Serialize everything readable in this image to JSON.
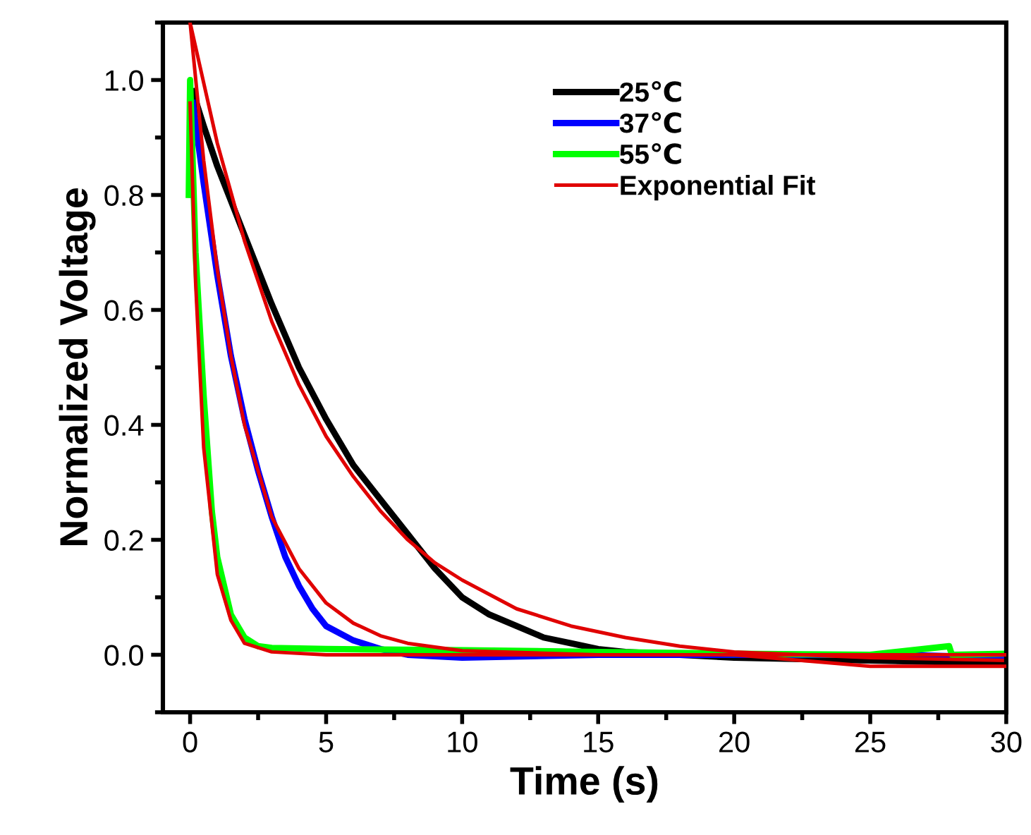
{
  "chart_data": {
    "type": "line",
    "xlabel": "Time (s)",
    "ylabel": "Normalized Voltage",
    "xlim": [
      -1,
      30
    ],
    "ylim": [
      -0.1,
      1.1
    ],
    "xticks": [
      0,
      5,
      10,
      15,
      20,
      25,
      30
    ],
    "yticks": [
      {
        "value": 0,
        "label": "0.0"
      },
      {
        "value": 0.2,
        "label": "0.2"
      },
      {
        "value": 0.4,
        "label": "0.4"
      },
      {
        "value": 0.6,
        "label": "0.6"
      },
      {
        "value": 0.8,
        "label": "0.8"
      },
      {
        "value": 1,
        "label": "1.0"
      }
    ],
    "grid": false,
    "legend": "top",
    "marker": "none",
    "line_style": "solid",
    "series": [
      {
        "name": "25℃",
        "color": "#000000",
        "x": [
          0.1,
          0.5,
          1,
          1.5,
          2,
          3,
          4,
          5,
          6,
          7,
          8,
          9,
          10,
          11,
          12,
          13,
          14,
          15,
          16,
          18,
          20,
          25,
          30
        ],
        "values": [
          0.98,
          0.92,
          0.85,
          0.79,
          0.73,
          0.61,
          0.5,
          0.41,
          0.33,
          0.27,
          0.21,
          0.15,
          0.1,
          0.07,
          0.05,
          0.03,
          0.02,
          0.01,
          0.005,
          0,
          -0.005,
          -0.01,
          -0.015
        ]
      },
      {
        "name": "37℃",
        "color": "#0000ff",
        "x": [
          0.1,
          0.5,
          1,
          1.5,
          2,
          2.5,
          3,
          3.5,
          4,
          4.5,
          5,
          6,
          7,
          8,
          10,
          15,
          20,
          26,
          30
        ],
        "values": [
          0.96,
          0.82,
          0.66,
          0.52,
          0.41,
          0.32,
          0.24,
          0.17,
          0.12,
          0.08,
          0.05,
          0.025,
          0.01,
          0,
          -0.005,
          0,
          0,
          0,
          -0.005
        ]
      },
      {
        "name": "55℃",
        "color": "#00ff00",
        "x": [
          -0.05,
          0,
          0.2,
          0.5,
          0.8,
          1,
          1.5,
          2,
          2.5,
          3,
          5,
          10,
          15,
          20,
          25,
          27.9,
          28,
          30
        ],
        "values": [
          0.8,
          1.0,
          0.7,
          0.45,
          0.25,
          0.17,
          0.07,
          0.03,
          0.015,
          0.012,
          0.01,
          0.008,
          0.005,
          0.002,
          0,
          0.015,
          0,
          0.002
        ]
      },
      {
        "name": "Exponential Fit",
        "color": "#e00000",
        "x": [
          0,
          1,
          2,
          3,
          4,
          5,
          6,
          7,
          8,
          9,
          10,
          12,
          14,
          16,
          18,
          20,
          25,
          30
        ],
        "values": [
          1.1,
          0.89,
          0.72,
          0.58,
          0.47,
          0.38,
          0.31,
          0.25,
          0.2,
          0.16,
          0.13,
          0.08,
          0.05,
          0.03,
          0.015,
          0.005,
          -0.005,
          -0.01
        ]
      },
      {
        "color": "#e00000",
        "x": [
          0,
          0.5,
          1,
          1.5,
          2,
          3,
          4,
          5,
          6,
          7,
          8,
          10,
          15,
          20,
          30
        ],
        "values": [
          1.1,
          0.86,
          0.67,
          0.52,
          0.4,
          0.24,
          0.15,
          0.09,
          0.055,
          0.033,
          0.02,
          0.007,
          0,
          0,
          0
        ]
      },
      {
        "color": "#e00000",
        "x": [
          0,
          0.2,
          0.5,
          1,
          1.5,
          2,
          3,
          5,
          20,
          25,
          30
        ],
        "values": [
          0.96,
          0.65,
          0.36,
          0.14,
          0.06,
          0.02,
          0.005,
          0,
          0,
          -0.02,
          -0.02
        ]
      }
    ]
  }
}
